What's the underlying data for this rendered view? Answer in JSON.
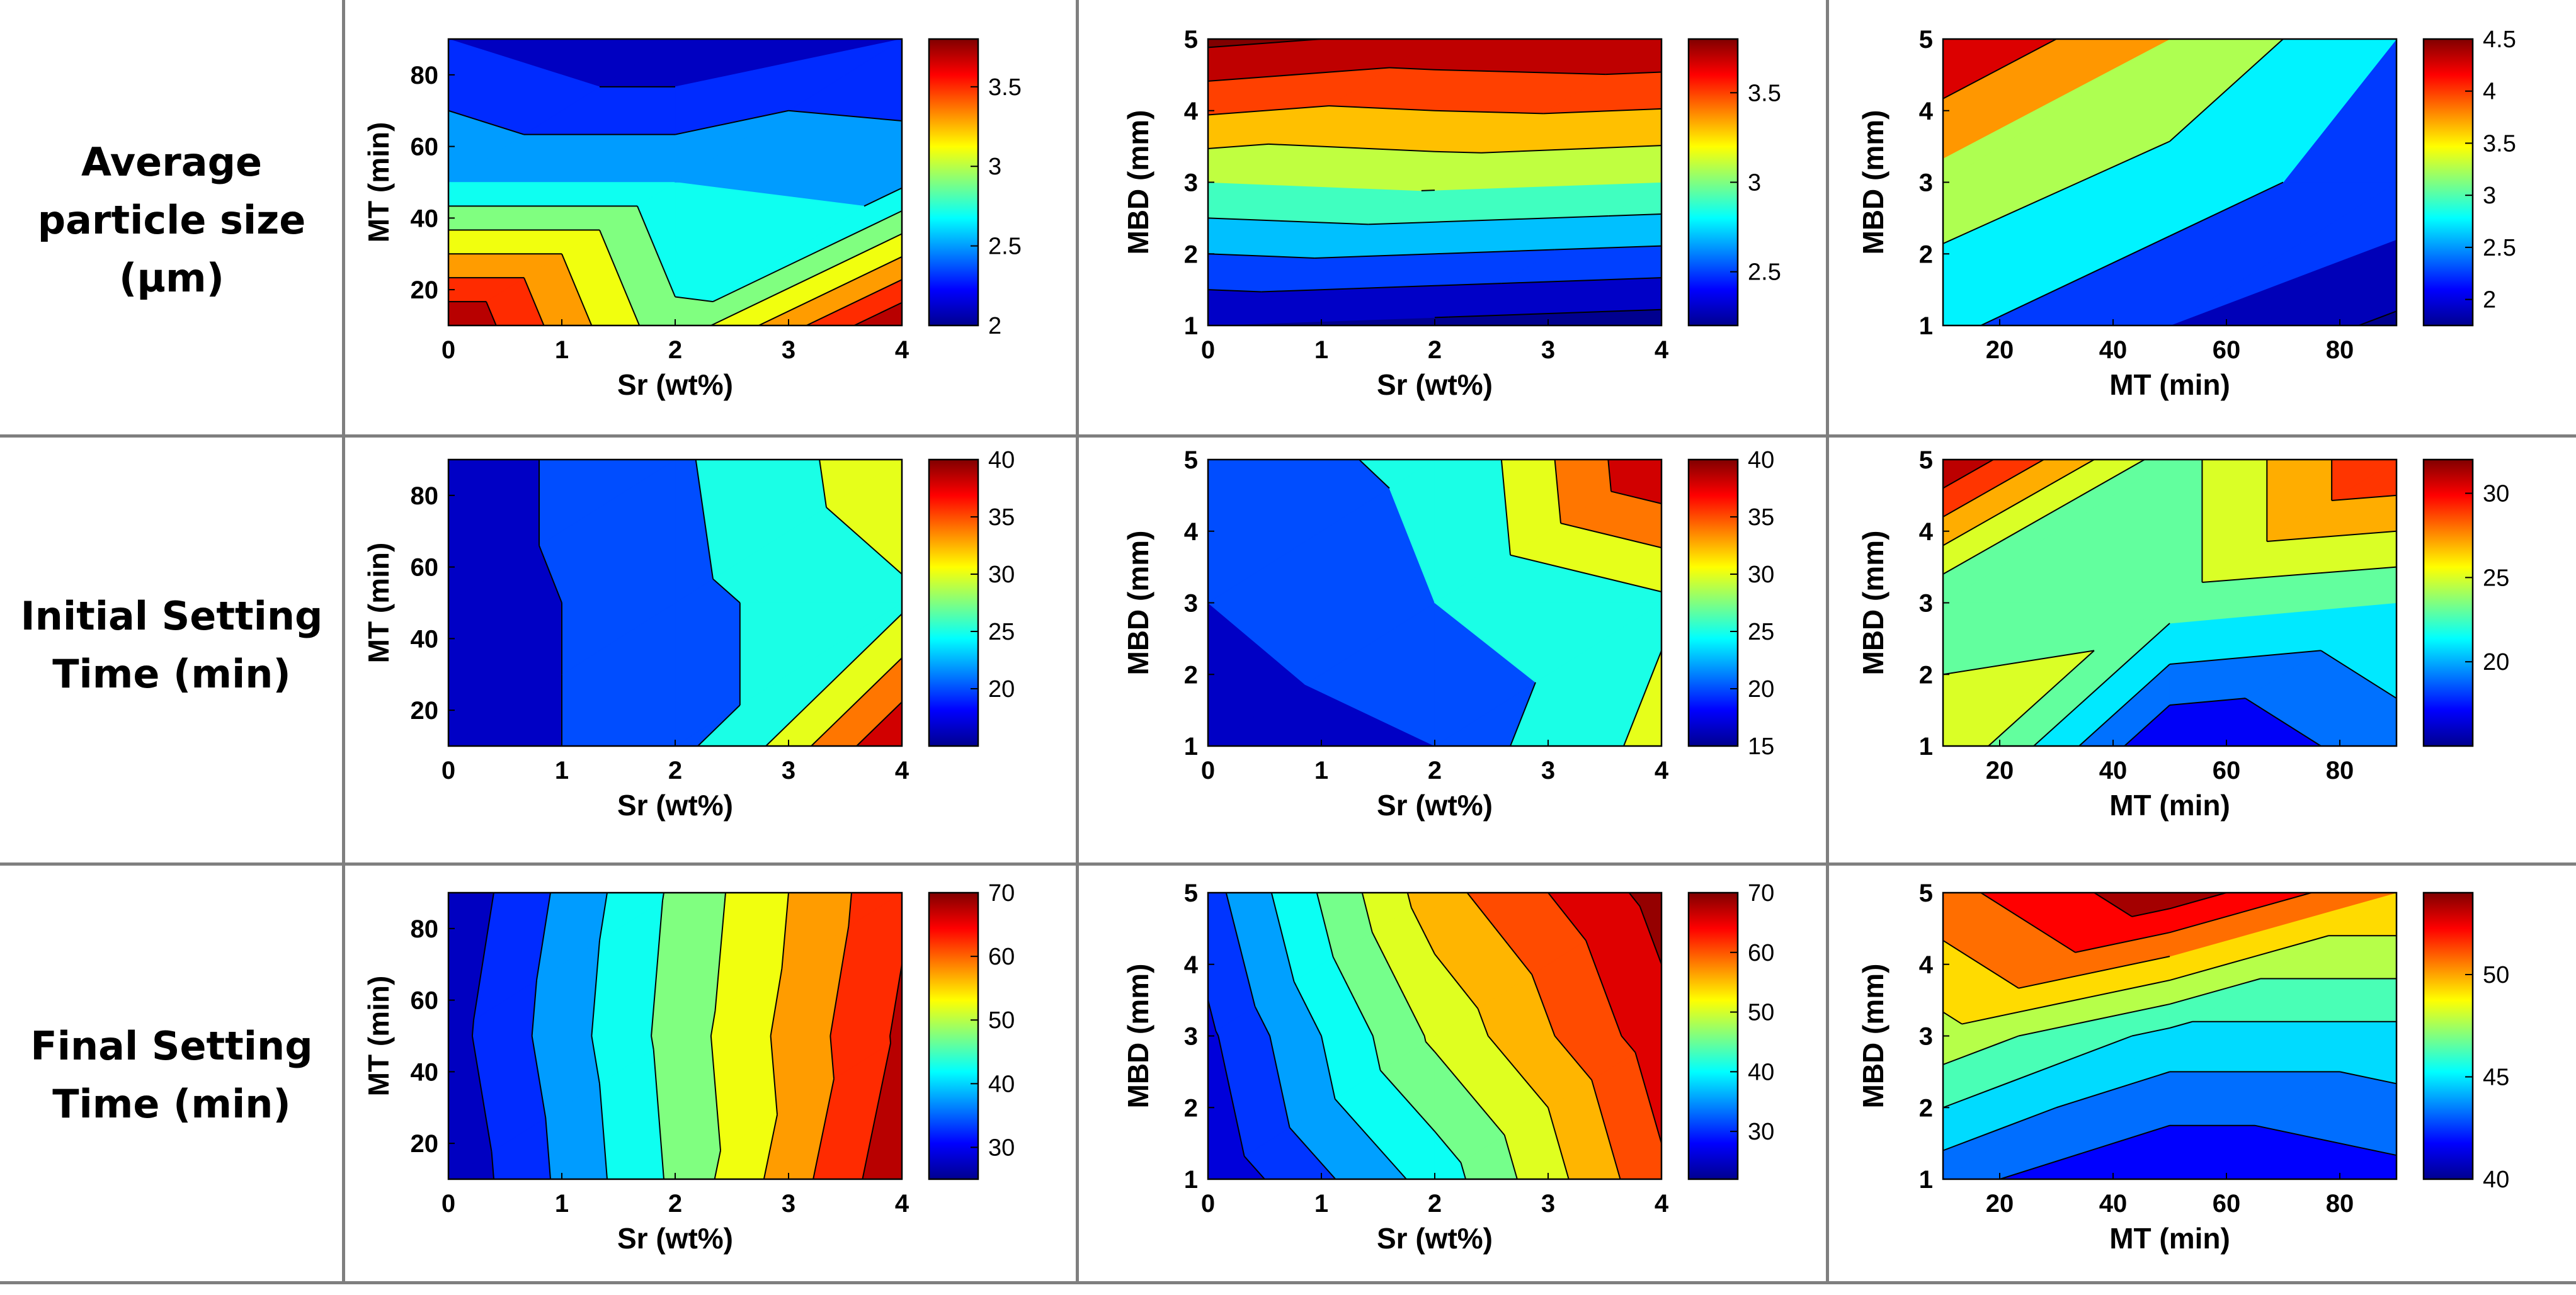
{
  "row_labels": [
    [
      "Average",
      "particle size",
      "(µm)"
    ],
    [
      "Initial Setting",
      "Time (min)"
    ],
    [
      "Final Setting",
      "Time (min)"
    ]
  ],
  "colormap": [
    "#00008f",
    "#0000ff",
    "#0080ff",
    "#00ffff",
    "#80ff80",
    "#ffff00",
    "#ff8000",
    "#ff0000",
    "#800000"
  ],
  "line_color": "#7f7f7f",
  "chart_data": [
    {
      "type": "contour",
      "row": 0,
      "col": 0,
      "xlabel": "Sr (wt%)",
      "ylabel": "MT (min)",
      "xlim": [
        0,
        4
      ],
      "ylim": [
        10,
        90
      ],
      "xticks": [
        "0",
        "1",
        "2",
        "3",
        "4"
      ],
      "yticks": [
        [
          "20",
          20
        ],
        [
          "40",
          40
        ],
        [
          "60",
          60
        ],
        [
          "80",
          80
        ]
      ],
      "x": [
        0,
        2,
        4
      ],
      "y": [
        10,
        50,
        90
      ],
      "z": [
        [
          3.8,
          2.85,
          3.8
        ],
        [
          2.6,
          2.6,
          2.55
        ],
        [
          2.2,
          2.0,
          2.2
        ]
      ],
      "levels": [
        2.0,
        2.2,
        2.4,
        2.6,
        2.8,
        3.0,
        3.2,
        3.4,
        3.6,
        3.8
      ],
      "cbar": {
        "lim": [
          2.0,
          3.8
        ],
        "ticks": [
          "2",
          "2.5",
          "3",
          "3.5"
        ],
        "vals": [
          2.0,
          2.5,
          3.0,
          3.5
        ]
      }
    },
    {
      "type": "contour",
      "row": 0,
      "col": 1,
      "xlabel": "Sr (wt%)",
      "ylabel": "MBD (mm)",
      "xlim": [
        0,
        4
      ],
      "ylim": [
        1,
        5
      ],
      "xticks": [
        "0",
        "1",
        "2",
        "3",
        "4"
      ],
      "yticks": [
        [
          "1",
          1
        ],
        [
          "2",
          2
        ],
        [
          "3",
          3
        ],
        [
          "4",
          4
        ],
        [
          "5",
          5
        ]
      ],
      "x": [
        0,
        2,
        4
      ],
      "y": [
        1,
        3,
        5
      ],
      "z": [
        [
          2.2,
          2.15,
          2.1
        ],
        [
          3.0,
          3.05,
          3.0
        ],
        [
          3.85,
          3.75,
          3.78
        ]
      ],
      "levels": [
        2.2,
        2.4,
        2.6,
        2.8,
        3.0,
        3.2,
        3.4,
        3.6,
        3.8
      ],
      "cbar": {
        "lim": [
          2.2,
          3.8
        ],
        "ticks": [
          "2.5",
          "3",
          "3.5"
        ],
        "vals": [
          2.5,
          3.0,
          3.5
        ]
      }
    },
    {
      "type": "contour",
      "row": 0,
      "col": 2,
      "xlabel": "MT (min)",
      "ylabel": "MBD (mm)",
      "xlim": [
        10,
        90
      ],
      "ylim": [
        1,
        5
      ],
      "xticks": [
        [
          "20",
          20
        ],
        [
          "40",
          40
        ],
        [
          "60",
          60
        ],
        [
          "80",
          80
        ]
      ],
      "yticks": [
        [
          "1",
          1
        ],
        [
          "2",
          2
        ],
        [
          "3",
          3
        ],
        [
          "4",
          4
        ],
        [
          "5",
          5
        ]
      ],
      "x": [
        10,
        50,
        90
      ],
      "y": [
        1,
        3,
        5
      ],
      "z": [
        [
          2.6,
          2.0,
          1.7
        ],
        [
          3.3,
          2.8,
          2.2
        ],
        [
          4.5,
          3.5,
          2.5
        ]
      ],
      "levels": [
        1.75,
        2.0,
        2.5,
        3.0,
        3.5,
        4.0,
        4.5
      ],
      "cbar": {
        "lim": [
          1.75,
          4.5
        ],
        "ticks": [
          "2",
          "2.5",
          "3",
          "3.5",
          "4",
          "4.5"
        ],
        "vals": [
          2.0,
          2.5,
          3.0,
          3.5,
          4.0,
          4.5
        ]
      }
    },
    {
      "type": "contour",
      "row": 1,
      "col": 0,
      "xlabel": "Sr (wt%)",
      "ylabel": "MT (min)",
      "xlim": [
        0,
        4
      ],
      "ylim": [
        10,
        90
      ],
      "xticks": [
        "0",
        "1",
        "2",
        "3",
        "4"
      ],
      "yticks": [
        [
          "20",
          20
        ],
        [
          "40",
          40
        ],
        [
          "60",
          60
        ],
        [
          "80",
          80
        ]
      ],
      "x": [
        0,
        2,
        4
      ],
      "y": [
        10,
        50,
        90
      ],
      "z": [
        [
          16,
          20,
          40
        ],
        [
          16,
          20,
          27
        ],
        [
          16,
          21,
          32
        ]
      ],
      "levels": [
        15,
        18,
        22,
        28,
        32,
        36,
        40
      ],
      "cbar": {
        "lim": [
          15,
          40
        ],
        "ticks": [
          "20",
          "25",
          "30",
          "35",
          "40"
        ],
        "vals": [
          20,
          25,
          30,
          35,
          40
        ]
      }
    },
    {
      "type": "contour",
      "row": 1,
      "col": 1,
      "xlabel": "Sr (wt%)",
      "ylabel": "MBD (mm)",
      "xlim": [
        0,
        4
      ],
      "ylim": [
        1,
        5
      ],
      "xticks": [
        "0",
        "1",
        "2",
        "3",
        "4"
      ],
      "yticks": [
        [
          "1",
          1
        ],
        [
          "2",
          2
        ],
        [
          "3",
          3
        ],
        [
          "4",
          4
        ],
        [
          "5",
          5
        ]
      ],
      "x": [
        0,
        2,
        4
      ],
      "y": [
        1,
        3,
        5
      ],
      "z": [
        [
          15,
          18,
          30
        ],
        [
          18,
          22,
          27
        ],
        [
          20,
          23,
          40
        ]
      ],
      "levels": [
        15,
        18,
        22,
        28,
        32,
        36,
        40
      ],
      "cbar": {
        "lim": [
          15,
          40
        ],
        "ticks": [
          "15",
          "20",
          "25",
          "30",
          "35",
          "40"
        ],
        "vals": [
          15,
          20,
          25,
          30,
          35,
          40
        ]
      }
    },
    {
      "type": "contour",
      "row": 1,
      "col": 2,
      "xlabel": "MT (min)",
      "ylabel": "MBD (mm)",
      "xlim": [
        10,
        90
      ],
      "ylim": [
        1,
        5
      ],
      "xticks": [
        [
          "20",
          20
        ],
        [
          "40",
          40
        ],
        [
          "60",
          60
        ],
        [
          "80",
          80
        ]
      ],
      "yticks": [
        [
          "1",
          1
        ],
        [
          "2",
          2
        ],
        [
          "3",
          3
        ],
        [
          "4",
          4
        ],
        [
          "5",
          5
        ]
      ],
      "x": [
        10,
        50,
        90
      ],
      "y": [
        1,
        3,
        5
      ],
      "z": [
        [
          26,
          16,
          19
        ],
        [
          22,
          23,
          22
        ],
        [
          32,
          23,
          30
        ]
      ],
      "levels": [
        16,
        18,
        20,
        22,
        24,
        26,
        28,
        30,
        32
      ],
      "cbar": {
        "lim": [
          15,
          32
        ],
        "ticks": [
          "20",
          "25",
          "30"
        ],
        "vals": [
          20,
          25,
          30
        ]
      }
    },
    {
      "type": "contour",
      "row": 2,
      "col": 0,
      "xlabel": "Sr (wt%)",
      "ylabel": "MT (min)",
      "xlim": [
        0,
        4
      ],
      "ylim": [
        10,
        90
      ],
      "xticks": [
        "0",
        "1",
        "2",
        "3",
        "4"
      ],
      "yticks": [
        [
          "20",
          20
        ],
        [
          "40",
          40
        ],
        [
          "60",
          60
        ],
        [
          "80",
          80
        ]
      ],
      "x": [
        0,
        2,
        4
      ],
      "y": [
        10,
        50,
        90
      ],
      "z": [
        [
          26,
          46,
          69
        ],
        [
          28,
          47,
          66
        ],
        [
          26,
          46,
          64
        ]
      ],
      "levels": [
        25,
        30,
        35,
        40,
        45,
        50,
        55,
        60,
        65,
        70
      ],
      "cbar": {
        "lim": [
          25,
          70
        ],
        "ticks": [
          "30",
          "40",
          "50",
          "60",
          "70"
        ],
        "vals": [
          30,
          40,
          50,
          60,
          70
        ]
      }
    },
    {
      "type": "contour",
      "row": 2,
      "col": 1,
      "xlabel": "Sr (wt%)",
      "ylabel": "MBD (mm)",
      "xlim": [
        0,
        4
      ],
      "ylim": [
        1,
        5
      ],
      "xticks": [
        "0",
        "1",
        "2",
        "3",
        "4"
      ],
      "yticks": [
        [
          "1",
          1
        ],
        [
          "2",
          2
        ],
        [
          "3",
          3
        ],
        [
          "4",
          4
        ],
        [
          "5",
          5
        ]
      ],
      "x": [
        0,
        2,
        4
      ],
      "y": [
        1,
        3,
        5
      ],
      "z": [
        [
          24,
          40,
          62
        ],
        [
          27,
          49,
          66
        ],
        [
          31,
          56,
          70
        ]
      ],
      "levels": [
        24,
        28,
        33,
        38,
        43,
        48,
        53,
        58,
        63,
        68
      ],
      "cbar": {
        "lim": [
          22,
          70
        ],
        "ticks": [
          "30",
          "40",
          "50",
          "60",
          "70"
        ],
        "vals": [
          30,
          40,
          50,
          60,
          70
        ]
      }
    },
    {
      "type": "contour",
      "row": 2,
      "col": 2,
      "xlabel": "MT (min)",
      "ylabel": "MBD (mm)",
      "xlim": [
        10,
        90
      ],
      "ylim": [
        1,
        5
      ],
      "xticks": [
        [
          "20",
          20
        ],
        [
          "40",
          40
        ],
        [
          "60",
          60
        ],
        [
          "80",
          80
        ]
      ],
      "yticks": [
        [
          "1",
          1
        ],
        [
          "2",
          2
        ],
        [
          "3",
          3
        ],
        [
          "4",
          4
        ],
        [
          "5",
          5
        ]
      ],
      "x": [
        10,
        50,
        90
      ],
      "y": [
        1,
        3,
        5
      ],
      "z": [
        [
          43,
          41,
          42
        ],
        [
          48,
          45,
          45
        ],
        [
          51,
          54,
          50
        ]
      ],
      "levels": [
        41,
        42.5,
        44,
        45.5,
        47,
        48.5,
        50,
        51.5,
        53
      ],
      "cbar": {
        "lim": [
          40,
          54
        ],
        "ticks": [
          "40",
          "45",
          "50"
        ],
        "vals": [
          40,
          45,
          50
        ]
      }
    }
  ]
}
